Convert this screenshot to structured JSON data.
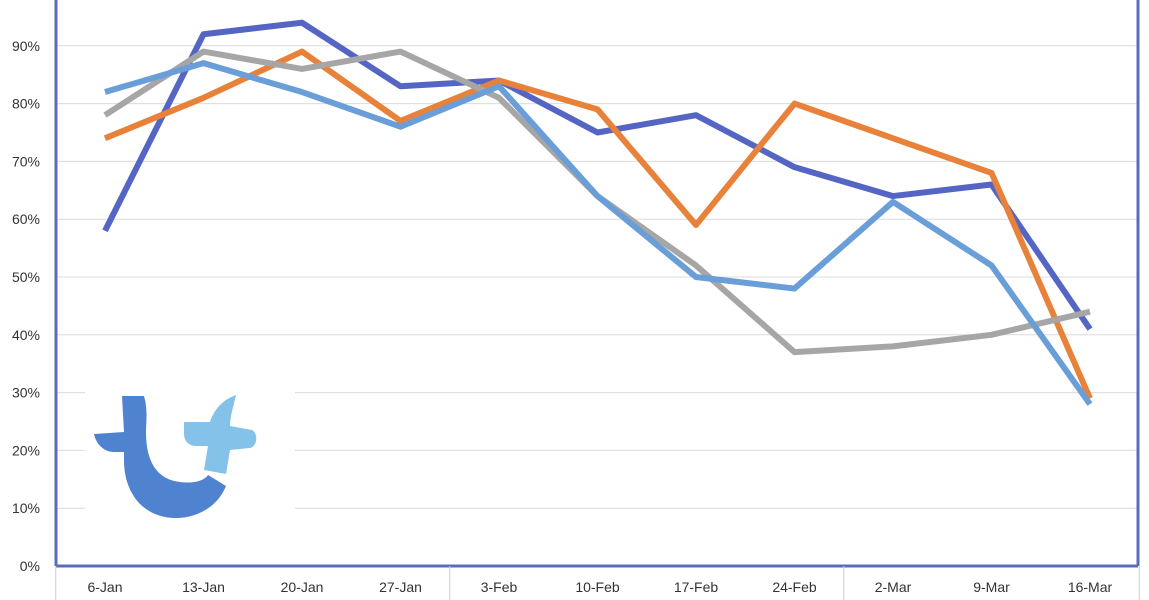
{
  "chart_data": {
    "type": "line",
    "title": "",
    "xlabel": "",
    "ylabel": "",
    "categories": [
      "6-Jan",
      "13-Jan",
      "20-Jan",
      "27-Jan",
      "3-Feb",
      "10-Feb",
      "17-Feb",
      "24-Feb",
      "2-Mar",
      "9-Mar",
      "16-Mar"
    ],
    "y_tick_labels": [
      "0%",
      "10%",
      "20%",
      "30%",
      "40%",
      "50%",
      "60%",
      "70%",
      "80%",
      "90%"
    ],
    "ylim": [
      0,
      100
    ],
    "grid": true,
    "legend": "none",
    "series": [
      {
        "color": "#5565c4",
        "values": [
          58,
          92,
          94,
          83,
          84,
          75,
          78,
          69,
          64,
          66,
          41
        ]
      },
      {
        "color": "#e8823a",
        "values": [
          74,
          81,
          89,
          77,
          84,
          79,
          59,
          80,
          74,
          68,
          29
        ]
      },
      {
        "color": "#a6a6a6",
        "values": [
          78,
          89,
          86,
          89,
          81,
          64,
          52,
          37,
          38,
          40,
          44
        ]
      },
      {
        "color": "#6a9ed8",
        "values": [
          82,
          87,
          82,
          76,
          83,
          64,
          50,
          48,
          63,
          52,
          28
        ]
      }
    ]
  },
  "logo": {
    "name": "tt-logo",
    "colors": {
      "dark": "#4f83cf",
      "light": "#85c2ea"
    }
  },
  "frame": {
    "border_color": "#5a6db8"
  }
}
